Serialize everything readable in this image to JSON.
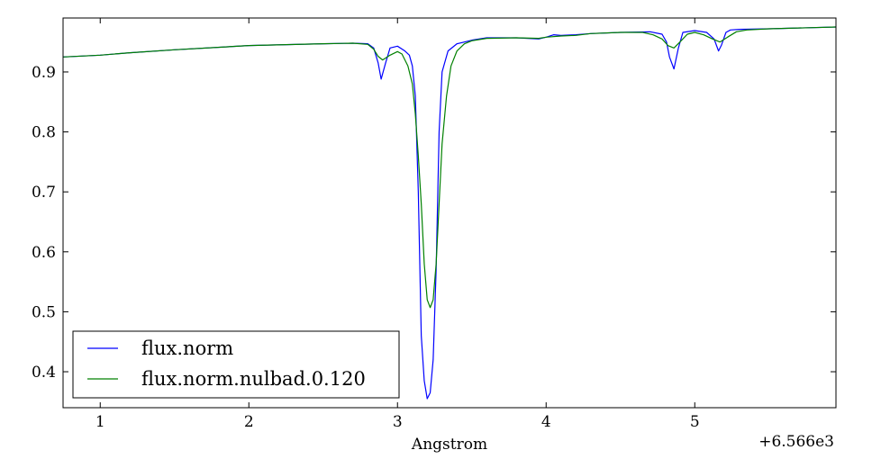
{
  "chart_data": {
    "type": "line",
    "xlabel": "Angstrom",
    "ylabel": "",
    "offset_label": "+6.566e3",
    "xlim": [
      0.75,
      5.95
    ],
    "ylim": [
      0.34,
      0.99
    ],
    "xticks": [
      1,
      2,
      3,
      4,
      5
    ],
    "yticks": [
      0.4,
      0.5,
      0.6,
      0.7,
      0.8,
      0.9
    ],
    "grid": false,
    "legend_position": "lower-left",
    "series": [
      {
        "name": "flux.norm",
        "color": "#0000ff",
        "x": [
          0.75,
          1.0,
          1.2,
          1.5,
          2.0,
          2.5,
          2.7,
          2.8,
          2.84,
          2.87,
          2.89,
          2.92,
          2.95,
          3.0,
          3.05,
          3.08,
          3.1,
          3.12,
          3.14,
          3.16,
          3.18,
          3.2,
          3.22,
          3.24,
          3.26,
          3.28,
          3.3,
          3.34,
          3.4,
          3.5,
          3.6,
          3.8,
          3.95,
          4.0,
          4.05,
          4.1,
          4.2,
          4.3,
          4.5,
          4.7,
          4.78,
          4.81,
          4.83,
          4.86,
          4.89,
          4.92,
          5.0,
          5.08,
          5.13,
          5.16,
          5.18,
          5.21,
          5.24,
          5.3,
          5.5,
          5.95
        ],
        "y": [
          0.925,
          0.928,
          0.932,
          0.937,
          0.944,
          0.947,
          0.948,
          0.947,
          0.94,
          0.915,
          0.888,
          0.915,
          0.94,
          0.943,
          0.935,
          0.928,
          0.91,
          0.86,
          0.7,
          0.46,
          0.385,
          0.355,
          0.365,
          0.42,
          0.57,
          0.8,
          0.9,
          0.935,
          0.947,
          0.953,
          0.957,
          0.957,
          0.955,
          0.958,
          0.962,
          0.961,
          0.962,
          0.964,
          0.966,
          0.967,
          0.963,
          0.95,
          0.925,
          0.905,
          0.94,
          0.966,
          0.969,
          0.966,
          0.955,
          0.935,
          0.945,
          0.966,
          0.97,
          0.971,
          0.972,
          0.975
        ]
      },
      {
        "name": "flux.norm.nulbad.0.120",
        "color": "#008000",
        "x": [
          0.75,
          1.0,
          1.2,
          1.5,
          2.0,
          2.5,
          2.7,
          2.8,
          2.84,
          2.87,
          2.9,
          2.95,
          3.0,
          3.03,
          3.07,
          3.1,
          3.12,
          3.14,
          3.16,
          3.18,
          3.2,
          3.22,
          3.24,
          3.26,
          3.28,
          3.3,
          3.33,
          3.36,
          3.4,
          3.45,
          3.5,
          3.6,
          3.8,
          3.95,
          4.0,
          4.1,
          4.2,
          4.3,
          4.5,
          4.65,
          4.72,
          4.78,
          4.82,
          4.86,
          4.9,
          4.95,
          5.0,
          5.06,
          5.12,
          5.17,
          5.22,
          5.28,
          5.35,
          5.5,
          5.95
        ],
        "y": [
          0.925,
          0.928,
          0.932,
          0.937,
          0.944,
          0.947,
          0.948,
          0.946,
          0.938,
          0.926,
          0.92,
          0.928,
          0.934,
          0.93,
          0.91,
          0.88,
          0.83,
          0.76,
          0.68,
          0.58,
          0.52,
          0.507,
          0.52,
          0.58,
          0.68,
          0.78,
          0.86,
          0.91,
          0.935,
          0.947,
          0.952,
          0.956,
          0.957,
          0.956,
          0.958,
          0.96,
          0.961,
          0.964,
          0.966,
          0.966,
          0.962,
          0.955,
          0.944,
          0.94,
          0.95,
          0.963,
          0.966,
          0.962,
          0.955,
          0.95,
          0.958,
          0.967,
          0.97,
          0.972,
          0.975
        ]
      }
    ]
  }
}
